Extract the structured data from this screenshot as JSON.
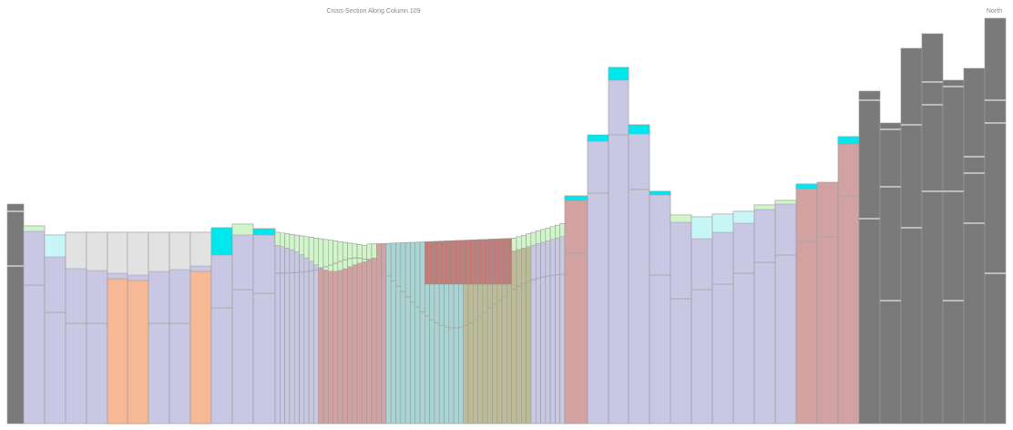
{
  "header": {
    "title": "Cross-Section Along Column 109",
    "direction": "North"
  }
}
